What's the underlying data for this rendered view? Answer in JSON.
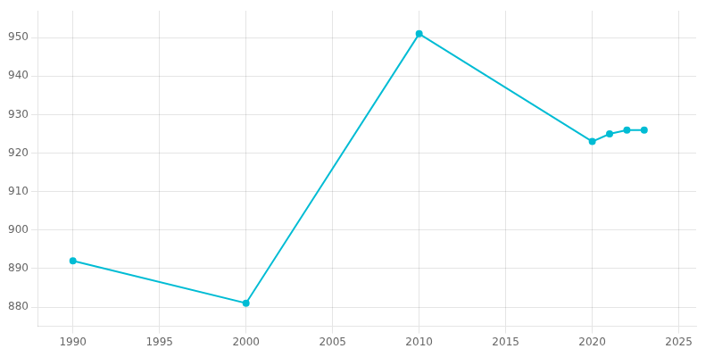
{
  "chart_data": {
    "type": "line",
    "x": [
      1990,
      2000,
      2010,
      2020,
      2021,
      2022,
      2023
    ],
    "values": [
      892,
      881,
      951,
      923,
      925,
      926,
      926
    ],
    "color": "#00BCD4",
    "marker": "circle",
    "xlim": [
      1988,
      2026
    ],
    "ylim": [
      875,
      957
    ],
    "xticks": [
      1990,
      1995,
      2000,
      2005,
      2010,
      2015,
      2020,
      2025
    ],
    "yticks": [
      880,
      890,
      900,
      910,
      920,
      930,
      940,
      950
    ],
    "grid": true
  }
}
